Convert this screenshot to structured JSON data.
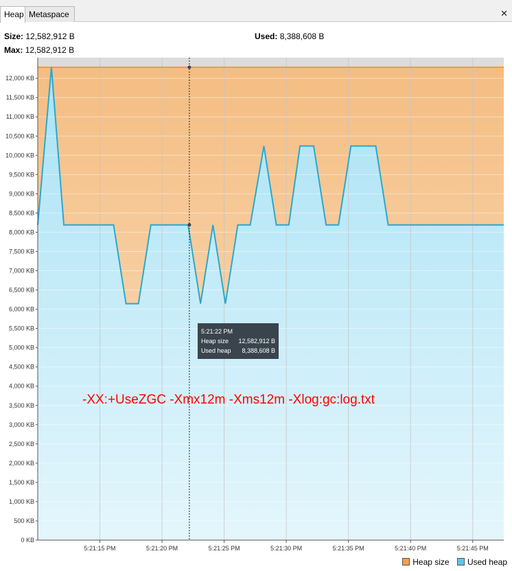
{
  "tabs": [
    {
      "label": "Heap",
      "active": true
    },
    {
      "label": "Metaspace",
      "active": false
    }
  ],
  "close_glyph": "✕",
  "stats": {
    "size_label": "Size:",
    "size_value": "12,582,912 B",
    "max_label": "Max:",
    "max_value": "12,582,912 B",
    "used_label": "Used:",
    "used_value": "8,388,608 B"
  },
  "tooltip": {
    "time": "5:21:22 PM",
    "heap_label": "Heap size",
    "heap_value": "12,582,912 B",
    "used_label": "Used heap",
    "used_value": "8,388,608 B"
  },
  "annotation": "-XX:+UseZGC -Xmx12m -Xms12m -Xlog:gc:log.txt",
  "legend": {
    "heap": "Heap size",
    "used": "Used heap"
  },
  "colors": {
    "heap_line": "#f29a3a",
    "used_line": "#2aa8cc",
    "heap_fill": "#f6c68e",
    "used_fill": "#a9e3f5"
  },
  "chart_data": {
    "type": "area",
    "y_unit": "KB",
    "ylim": [
      0,
      12288
    ],
    "xlim": [
      0,
      37.5
    ],
    "y_ticks": [
      {
        "value": 0,
        "label": "0 KB"
      },
      {
        "value": 500,
        "label": "500 KB"
      },
      {
        "value": 1000,
        "label": "1,000 KB"
      },
      {
        "value": 1500,
        "label": "1,500 KB"
      },
      {
        "value": 2000,
        "label": "2,000 KB"
      },
      {
        "value": 2500,
        "label": "2,500 KB"
      },
      {
        "value": 3000,
        "label": "3,000 KB"
      },
      {
        "value": 3500,
        "label": "3,500 KB"
      },
      {
        "value": 4000,
        "label": "4,000 KB"
      },
      {
        "value": 4500,
        "label": "4,500 KB"
      },
      {
        "value": 5000,
        "label": "5,000 KB"
      },
      {
        "value": 5500,
        "label": "5,500 KB"
      },
      {
        "value": 6000,
        "label": "6,000 KB"
      },
      {
        "value": 6500,
        "label": "6,500 KB"
      },
      {
        "value": 7000,
        "label": "7,000 KB"
      },
      {
        "value": 7500,
        "label": "7,500 KB"
      },
      {
        "value": 8000,
        "label": "8,000 KB"
      },
      {
        "value": 8500,
        "label": "8,500 KB"
      },
      {
        "value": 9000,
        "label": "9,000 KB"
      },
      {
        "value": 9500,
        "label": "9,500 KB"
      },
      {
        "value": 10000,
        "label": "10,000 KB"
      },
      {
        "value": 10500,
        "label": "10,500 KB"
      },
      {
        "value": 11000,
        "label": "11,000 KB"
      },
      {
        "value": 11500,
        "label": "11,500 KB"
      },
      {
        "value": 12000,
        "label": "12,000 KB"
      }
    ],
    "x_ticks": [
      {
        "value": 5,
        "label": "5:21:15 PM"
      },
      {
        "value": 10,
        "label": "5:21:20 PM"
      },
      {
        "value": 15,
        "label": "5:21:25 PM"
      },
      {
        "value": 20,
        "label": "5:21:30 PM"
      },
      {
        "value": 25,
        "label": "5:21:35 PM"
      },
      {
        "value": 30,
        "label": "5:21:40 PM"
      },
      {
        "value": 35,
        "label": "5:21:45 PM"
      }
    ],
    "cursor_x": 12.2,
    "series": [
      {
        "name": "Heap size",
        "x": [
          0,
          37.5
        ],
        "y": [
          12288,
          12288
        ]
      },
      {
        "name": "Used heap",
        "x": [
          0,
          1.1,
          2.1,
          6.1,
          7.1,
          8.1,
          9.1,
          12.1,
          13.1,
          14.1,
          15.1,
          16.1,
          17.1,
          18.2,
          19.2,
          20.2,
          21.1,
          22.2,
          23.2,
          24.2,
          25.2,
          26.2,
          27.2,
          28.2,
          37.5
        ],
        "y": [
          8192,
          12288,
          8192,
          8192,
          6144,
          6144,
          8192,
          8192,
          6144,
          8192,
          6144,
          8192,
          8192,
          10240,
          8192,
          8192,
          10240,
          10240,
          8192,
          8192,
          10240,
          10240,
          10240,
          8192,
          8192
        ]
      }
    ]
  }
}
